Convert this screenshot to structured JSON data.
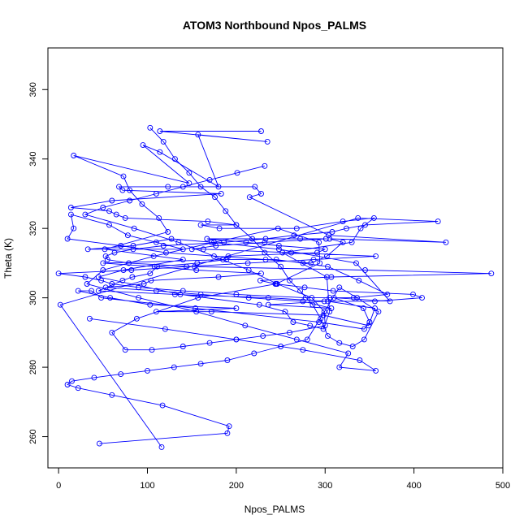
{
  "chart_data": {
    "type": "line",
    "title": "ATOM3 Northbound Npos_PALMS",
    "xlabel": "Npos_PALMS",
    "ylabel": "Theta (K)",
    "xlim": [
      -12,
      500
    ],
    "ylim": [
      251,
      372
    ],
    "x_ticks": [
      0,
      100,
      200,
      300,
      400,
      500
    ],
    "x_tick_labels": [
      "0",
      "100",
      "200",
      "300",
      "400",
      "500"
    ],
    "y_ticks": [
      260,
      280,
      300,
      320,
      340,
      360
    ],
    "y_tick_labels": [
      "260",
      "280",
      "300",
      "320",
      "340",
      "360"
    ],
    "marker": "open-circle",
    "grid": false,
    "legend": "none",
    "color": "#0000ff",
    "series": [
      {
        "x": [
          228,
          114,
          235,
          157,
          180,
          114,
          95,
          147,
          17,
          73,
          80,
          94,
          113,
          123,
          52,
          140,
          73,
          45,
          137,
          226,
          255,
          264,
          283,
          298,
          305,
          302,
          252,
          330,
          340,
          355,
          320,
          268,
          181,
          160,
          200,
          168,
          75,
          65,
          57,
          14,
          60,
          183,
          72,
          68,
          123,
          221,
          228,
          215,
          304,
          436,
          305,
          320,
          302,
          284,
          233,
          121,
          70,
          10,
          17,
          14,
          57,
          78,
          110,
          140,
          33,
          84,
          127,
          172,
          248,
          335,
          373,
          310,
          343,
          350,
          344,
          293,
          154,
          48,
          37,
          22,
          58,
          103,
          200,
          110,
          172,
          298,
          349,
          356,
          303,
          236,
          131,
          45,
          72,
          83,
          103,
          111,
          156,
          189,
          245,
          275,
          303,
          338,
          370,
          332,
          305,
          278,
          200,
          140,
          90,
          60,
          48,
          30,
          0,
          82,
          144,
          213,
          287,
          357,
          262,
          163,
          150,
          177,
          232,
          301,
          272,
          167,
          211,
          248,
          300,
          291,
          191,
          185,
          50,
          108,
          155,
          228,
          180,
          104,
          96,
          53,
          110,
          160,
          214,
          275,
          307,
          236,
          299,
          356,
          409,
          399,
          309,
          277,
          244,
          227,
          307,
          487,
          345,
          153,
          79,
          55,
          53,
          63,
          84,
          118,
          186,
          233,
          265,
          308,
          324,
          345,
          427,
          337,
          2,
          116
        ],
        "y": [
          348,
          348,
          345,
          347,
          332,
          342,
          344,
          333,
          341,
          335,
          331,
          327,
          323,
          319,
          314,
          311,
          308,
          306,
          301,
          298,
          296,
          293,
          292,
          291,
          296,
          306,
          313,
          316,
          320,
          323,
          322,
          320,
          320,
          321,
          321,
          322,
          323,
          324,
          325,
          326,
          328,
          330,
          331,
          332,
          332,
          332,
          330,
          329,
          318,
          316,
          317,
          316,
          312,
          310,
          311,
          313,
          315,
          317,
          320,
          324,
          321,
          318,
          316,
          314,
          314,
          315,
          317,
          316,
          314,
          310,
          299,
          300,
          297,
          293,
          291,
          293,
          297,
          300,
          302,
          302,
          300,
          298,
          297,
          296,
          296,
          295,
          292,
          297,
          299,
          300,
          301,
          302,
          305,
          306,
          307,
          309,
          310,
          311,
          311,
          310,
          309,
          305,
          301,
          300,
          300,
          300,
          301,
          302,
          303,
          304,
          305,
          306,
          307,
          308,
          309,
          310,
          311,
          312,
          313,
          314,
          314,
          315,
          316,
          317,
          317,
          317,
          316,
          315,
          314,
          313,
          312,
          311,
          310,
          309,
          308,
          307,
          306,
          305,
          304,
          303,
          302,
          301,
          300,
          299,
          297,
          298,
          299,
          299,
          300,
          301,
          302,
          303,
          304,
          305,
          306,
          307,
          308,
          309,
          310,
          311,
          312,
          313,
          314,
          315,
          316,
          317,
          318,
          319,
          320,
          321,
          322,
          323,
          298,
          257
        ]
      },
      {
        "x": [
          103,
          118,
          131,
          147,
          160,
          176,
          188,
          200,
          218,
          232,
          250,
          260,
          272,
          286,
          295,
          303,
          316,
          331,
          344,
          360,
          336,
          316,
          280,
          250,
          220,
          190,
          160,
          130,
          100,
          70,
          40,
          15,
          10,
          22,
          60,
          117,
          192,
          190,
          46
        ],
        "y": [
          349,
          345,
          340,
          336,
          332,
          329,
          325,
          321,
          317,
          313,
          309,
          305,
          302,
          298,
          294,
          289,
          287,
          286,
          288,
          296,
          300,
          303,
          288,
          286,
          284,
          282,
          281,
          280,
          279,
          278,
          277,
          276,
          275,
          274,
          272,
          269,
          263,
          261,
          258
        ]
      },
      {
        "x": [
          232,
          201,
          170,
          140,
          110,
          80,
          50,
          30,
          85,
          135,
          175,
          214,
          246,
          285,
          299,
          300,
          260,
          230,
          200,
          170,
          140,
          105,
          75,
          60,
          88,
          157,
          245,
          294,
          293,
          247,
          175,
          107,
          50,
          32,
          90,
          155,
          210,
          268,
          326,
          316,
          357,
          339,
          275,
          200,
          120,
          35
        ],
        "y": [
          338,
          336,
          334,
          332,
          330,
          328,
          326,
          324,
          320,
          316,
          312,
          308,
          304,
          300,
          296,
          292,
          290,
          289,
          288,
          287,
          286,
          285,
          285,
          290,
          294,
          300,
          304,
          310,
          316,
          320,
          316,
          312,
          308,
          304,
          300,
          296,
          292,
          288,
          284,
          280,
          279,
          282,
          285,
          288,
          291,
          294
        ]
      }
    ]
  }
}
